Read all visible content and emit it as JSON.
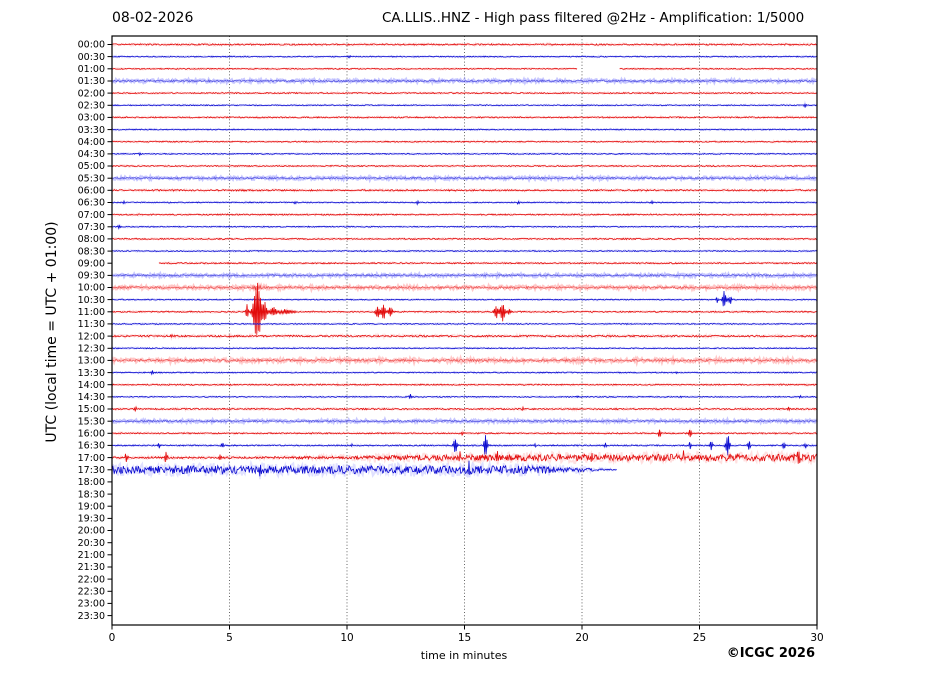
{
  "footer": {
    "copyright": "©ICGC 2026"
  },
  "colors": {
    "red": "#e00000",
    "red_fuzz": "#ff9090",
    "blue": "#0000cc",
    "blue_fuzz": "#9090ff",
    "grid": "#555555",
    "axis": "#000000",
    "text": "#000000",
    "background": "#ffffff"
  },
  "chart_data": {
    "type": "line",
    "subtype": "helicorder-day-plot",
    "date": "08-02-2026",
    "title": "CA.LLIS..HNZ - High pass filtered @2Hz - Amplification: 1/5000",
    "x_axis": {
      "label": "time in minutes",
      "ticks": [
        "0",
        "5",
        "10",
        "15",
        "20",
        "25",
        "30"
      ],
      "tick_values": [
        0,
        5,
        10,
        15,
        20,
        25,
        30
      ],
      "range": [
        0,
        30
      ],
      "gridlines": [
        5,
        10,
        15,
        20,
        25
      ]
    },
    "y_axis": {
      "label": "UTC (local time = UTC + 01:00)",
      "direction": "top-down",
      "minutes_per_row": 30
    },
    "legend_note": "events are [minute, amplitude_px, envelope_width_min]; noise_profile segments are [from_min, to_min, amp_start_px, amp_end_px]; data_range null means no data recorded for that half hour",
    "rows": [
      {
        "time": "00:00",
        "color": "red",
        "noise": 0.7,
        "data_range": [
          0,
          30
        ]
      },
      {
        "time": "00:30",
        "color": "blue",
        "noise": 0.5,
        "data_range": [
          0,
          30
        ],
        "events": [
          [
            10.1,
            1.5
          ]
        ]
      },
      {
        "time": "01:00",
        "color": "red",
        "noise": 0.5,
        "data_range": [
          0,
          30
        ],
        "gaps": [
          [
            19.8,
            21.6
          ]
        ]
      },
      {
        "time": "01:30",
        "color": "blue",
        "noise": 0.9,
        "data_range": [
          0,
          30
        ],
        "soft": true
      },
      {
        "time": "02:00",
        "color": "red",
        "noise": 0.55,
        "data_range": [
          0,
          30
        ]
      },
      {
        "time": "02:30",
        "color": "blue",
        "noise": 0.5,
        "data_range": [
          0,
          30
        ],
        "events": [
          [
            29.5,
            2.5
          ]
        ]
      },
      {
        "time": "03:00",
        "color": "red",
        "noise": 0.6,
        "data_range": [
          0,
          30
        ]
      },
      {
        "time": "03:30",
        "color": "blue",
        "noise": 0.5,
        "data_range": [
          0,
          30
        ]
      },
      {
        "time": "04:00",
        "color": "red",
        "noise": 0.55,
        "data_range": [
          0,
          30
        ]
      },
      {
        "time": "04:30",
        "color": "blue",
        "noise": 0.5,
        "data_range": [
          0,
          30
        ],
        "events": [
          [
            1.2,
            1.5
          ]
        ]
      },
      {
        "time": "05:00",
        "color": "red",
        "noise": 0.55,
        "data_range": [
          0,
          30
        ]
      },
      {
        "time": "05:30",
        "color": "blue",
        "noise": 0.85,
        "data_range": [
          0,
          30
        ],
        "soft": true
      },
      {
        "time": "06:00",
        "color": "red",
        "noise": 0.7,
        "data_range": [
          0,
          30
        ]
      },
      {
        "time": "06:30",
        "color": "blue",
        "noise": 0.5,
        "data_range": [
          0,
          30
        ],
        "events": [
          [
            0.5,
            2
          ],
          [
            7.8,
            1.5
          ],
          [
            13,
            2
          ],
          [
            17.3,
            2
          ],
          [
            23,
            1.5
          ]
        ]
      },
      {
        "time": "07:00",
        "color": "red",
        "noise": 0.6,
        "data_range": [
          0,
          30
        ]
      },
      {
        "time": "07:30",
        "color": "blue",
        "noise": 0.5,
        "data_range": [
          0,
          30
        ],
        "events": [
          [
            0.3,
            2
          ]
        ]
      },
      {
        "time": "08:00",
        "color": "red",
        "noise": 0.6,
        "data_range": [
          0,
          30
        ]
      },
      {
        "time": "08:30",
        "color": "blue",
        "noise": 0.5,
        "data_range": [
          0,
          30
        ]
      },
      {
        "time": "09:00",
        "color": "red",
        "noise": 0.6,
        "data_range": [
          2,
          30
        ]
      },
      {
        "time": "09:30",
        "color": "blue",
        "noise": 0.85,
        "data_range": [
          0,
          30
        ],
        "soft": true
      },
      {
        "time": "10:00",
        "color": "red",
        "noise": 1.0,
        "data_range": [
          0,
          30
        ],
        "soft": true,
        "events": [
          [
            6.05,
            3
          ],
          [
            6.3,
            3
          ]
        ]
      },
      {
        "time": "10:30",
        "color": "blue",
        "noise": 0.5,
        "data_range": [
          0,
          30
        ],
        "events": [
          [
            25.75,
            3
          ],
          [
            26.05,
            9,
            0.08
          ],
          [
            26.3,
            5,
            0.07
          ]
        ]
      },
      {
        "time": "11:00",
        "color": "red",
        "noise": 0.6,
        "data_range": [
          0,
          30
        ],
        "events": [
          [
            5.75,
            8,
            0.05
          ],
          [
            6.18,
            32,
            0.16
          ],
          [
            6.5,
            10,
            0.1
          ],
          [
            6.85,
            5,
            0.15
          ],
          [
            7.4,
            2.5,
            0.3
          ],
          [
            11.3,
            6,
            0.1
          ],
          [
            11.55,
            8,
            0.09
          ],
          [
            11.85,
            5,
            0.1
          ],
          [
            16.35,
            7,
            0.09
          ],
          [
            16.62,
            10,
            0.1
          ],
          [
            16.9,
            3,
            0.1
          ]
        ]
      },
      {
        "time": "11:30",
        "color": "blue",
        "noise": 0.5,
        "data_range": [
          0,
          30
        ]
      },
      {
        "time": "12:00",
        "color": "red",
        "noise": 0.85,
        "data_range": [
          0,
          30
        ],
        "events": [
          [
            2.5,
            2
          ]
        ]
      },
      {
        "time": "12:30",
        "color": "blue",
        "noise": 0.5,
        "data_range": [
          0,
          30
        ]
      },
      {
        "time": "13:00",
        "color": "red",
        "noise": 1.1,
        "data_range": [
          0,
          30
        ],
        "soft": true
      },
      {
        "time": "13:30",
        "color": "blue",
        "noise": 0.5,
        "data_range": [
          0,
          30
        ],
        "events": [
          [
            1.7,
            2.5
          ],
          [
            24,
            1.5
          ]
        ]
      },
      {
        "time": "14:00",
        "color": "red",
        "noise": 0.6,
        "data_range": [
          0,
          30
        ],
        "events": [
          [
            5,
            1.5
          ],
          [
            9.6,
            1.5
          ]
        ]
      },
      {
        "time": "14:30",
        "color": "blue",
        "noise": 0.5,
        "data_range": [
          0,
          30
        ],
        "events": [
          [
            12.7,
            2.5
          ],
          [
            19.8,
            1.5
          ],
          [
            24.2,
            1.5
          ],
          [
            29.3,
            2
          ]
        ]
      },
      {
        "time": "15:00",
        "color": "red",
        "noise": 0.7,
        "data_range": [
          0,
          30
        ],
        "events": [
          [
            1,
            2.5
          ],
          [
            17.5,
            2
          ],
          [
            28.8,
            2.5
          ]
        ]
      },
      {
        "time": "15:30",
        "color": "blue",
        "noise": 0.85,
        "data_range": [
          0,
          30
        ],
        "soft": true
      },
      {
        "time": "16:00",
        "color": "red",
        "noise": 0.6,
        "data_range": [
          0,
          30
        ],
        "events": [
          [
            14.9,
            2.5
          ],
          [
            23.3,
            5,
            0.06
          ],
          [
            24.6,
            4,
            0.06
          ]
        ]
      },
      {
        "time": "16:30",
        "color": "blue",
        "noise": 0.6,
        "data_range": [
          0,
          30
        ],
        "events": [
          [
            2,
            3
          ],
          [
            4.7,
            3
          ],
          [
            10.2,
            2
          ],
          [
            14.6,
            10,
            0.07
          ],
          [
            15.9,
            12,
            0.07
          ],
          [
            18,
            2
          ],
          [
            21,
            3
          ],
          [
            24.6,
            4
          ],
          [
            25.5,
            5,
            0.06
          ],
          [
            26.2,
            12,
            0.08
          ],
          [
            27.1,
            5,
            0.06
          ],
          [
            28.6,
            4,
            0.06
          ],
          [
            29.5,
            3
          ]
        ]
      },
      {
        "time": "17:00",
        "color": "red",
        "data_range": [
          0,
          30
        ],
        "noise_profile": [
          [
            0,
            5,
            0.9,
            0.9
          ],
          [
            5,
            10,
            0.9,
            1.6
          ],
          [
            10,
            14,
            1.6,
            3.0
          ],
          [
            14,
            30,
            3.2,
            3.4
          ]
        ],
        "events": [
          [
            0.6,
            5,
            0.05
          ],
          [
            2.3,
            6,
            0.06
          ],
          [
            4.6,
            3
          ],
          [
            11.2,
            4
          ],
          [
            14.8,
            5
          ],
          [
            16.4,
            6,
            0.06
          ],
          [
            20.4,
            6,
            0.06
          ],
          [
            24.3,
            5
          ],
          [
            29.2,
            7,
            0.07
          ]
        ]
      },
      {
        "time": "17:30",
        "color": "blue",
        "data_range": [
          0,
          21.5
        ],
        "noise_profile": [
          [
            0,
            18.5,
            4.0,
            4.0
          ],
          [
            18.5,
            21.5,
            3.5,
            0.3
          ]
        ],
        "events": [
          [
            6.3,
            6
          ],
          [
            9.2,
            5
          ],
          [
            15.2,
            6
          ]
        ]
      },
      {
        "time": "18:00",
        "color": "red",
        "data_range": null
      },
      {
        "time": "18:30",
        "color": "blue",
        "data_range": null
      },
      {
        "time": "19:00",
        "color": "red",
        "data_range": null
      },
      {
        "time": "19:30",
        "color": "blue",
        "data_range": null
      },
      {
        "time": "20:00",
        "color": "red",
        "data_range": null
      },
      {
        "time": "20:30",
        "color": "blue",
        "data_range": null
      },
      {
        "time": "21:00",
        "color": "red",
        "data_range": null
      },
      {
        "time": "21:30",
        "color": "blue",
        "data_range": null
      },
      {
        "time": "22:00",
        "color": "red",
        "data_range": null
      },
      {
        "time": "22:30",
        "color": "blue",
        "data_range": null
      },
      {
        "time": "23:00",
        "color": "red",
        "data_range": null
      },
      {
        "time": "23:30",
        "color": "blue",
        "data_range": null
      }
    ]
  }
}
